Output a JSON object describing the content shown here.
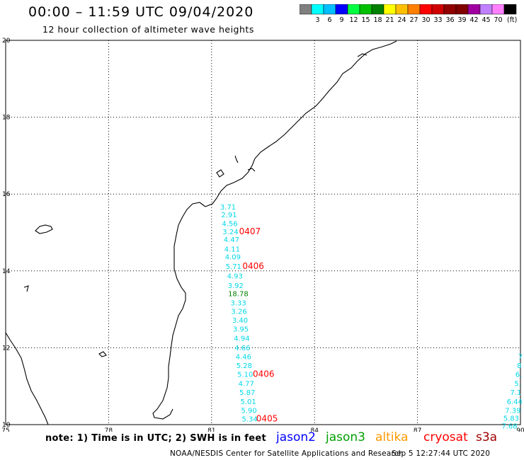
{
  "header": {
    "title": "00:00 – 11:59 UTC 09/04/2020",
    "subtitle": "12 hour collection of altimeter wave heights"
  },
  "colorbar": {
    "colors": [
      "#808080",
      "#00ffff",
      "#00bfff",
      "#0000ff",
      "#00ff40",
      "#00c000",
      "#008000",
      "#ffff00",
      "#ffc000",
      "#ff8000",
      "#ff0000",
      "#d00000",
      "#900000",
      "#800000",
      "#a000a0",
      "#c080ff",
      "#ff80ff",
      "#000000"
    ],
    "labels": [
      "3",
      "6",
      "9",
      "12",
      "15",
      "18",
      "21",
      "24",
      "27",
      "30",
      "33",
      "36",
      "39",
      "42",
      "45",
      "70"
    ],
    "unit": "(ft)"
  },
  "map": {
    "lon_ticks": [
      "75",
      "78",
      "81",
      "84",
      "87",
      "90"
    ],
    "lat_ticks": [
      "10",
      "12",
      "14",
      "16",
      "18",
      "20"
    ],
    "lon_range": [
      75,
      90
    ],
    "lat_range": [
      10,
      20
    ],
    "grid": "dotted",
    "track_main": [
      {
        "text": "3.71",
        "lon": 81.25,
        "lat": 15.6
      },
      {
        "text": "2.91",
        "lon": 81.28,
        "lat": 15.4
      },
      {
        "text": "4.56",
        "lon": 81.3,
        "lat": 15.17
      },
      {
        "text": "3.24",
        "lon": 81.32,
        "lat": 14.95
      },
      {
        "text": "4.47",
        "lon": 81.35,
        "lat": 14.75
      },
      {
        "text": "4.11",
        "lon": 81.37,
        "lat": 14.5
      },
      {
        "text": "4.09",
        "lon": 81.39,
        "lat": 14.3
      },
      {
        "text": "5.71",
        "lon": 81.41,
        "lat": 14.05
      },
      {
        "text": "4.93",
        "lon": 81.45,
        "lat": 13.8
      },
      {
        "text": "3.92",
        "lon": 81.47,
        "lat": 13.55
      },
      {
        "text": "18.78",
        "lon": 81.48,
        "lat": 13.34,
        "color": "#008000"
      },
      {
        "text": "3.33",
        "lon": 81.55,
        "lat": 13.1
      },
      {
        "text": "3.26",
        "lon": 81.57,
        "lat": 12.88
      },
      {
        "text": "3.40",
        "lon": 81.6,
        "lat": 12.65
      },
      {
        "text": "3.95",
        "lon": 81.62,
        "lat": 12.42
      },
      {
        "text": "4.94",
        "lon": 81.65,
        "lat": 12.18
      },
      {
        "text": "4.66",
        "lon": 81.67,
        "lat": 11.93
      },
      {
        "text": "4.46",
        "lon": 81.7,
        "lat": 11.7
      },
      {
        "text": "5.28",
        "lon": 81.72,
        "lat": 11.47
      },
      {
        "text": "5.10",
        "lon": 81.75,
        "lat": 11.24
      },
      {
        "text": "4.77",
        "lon": 81.78,
        "lat": 11.0
      },
      {
        "text": "5.87",
        "lon": 81.81,
        "lat": 10.77
      },
      {
        "text": "5.01",
        "lon": 81.84,
        "lat": 10.53
      },
      {
        "text": "5.90",
        "lon": 81.86,
        "lat": 10.3
      },
      {
        "text": "5.34",
        "lon": 81.88,
        "lat": 10.08
      }
    ],
    "track_right": [
      {
        "text": "7",
        "lon": 89.93,
        "lat": 11.7
      },
      {
        "text": "8",
        "lon": 89.9,
        "lat": 11.47
      },
      {
        "text": "6.",
        "lon": 89.85,
        "lat": 11.24
      },
      {
        "text": "5.",
        "lon": 89.82,
        "lat": 11.0
      },
      {
        "text": "7.1",
        "lon": 89.7,
        "lat": 10.77
      },
      {
        "text": "6.44",
        "lon": 89.6,
        "lat": 10.53
      },
      {
        "text": "7.39",
        "lon": 89.55,
        "lat": 10.3
      },
      {
        "text": "5.83",
        "lon": 89.5,
        "lat": 10.1
      },
      {
        "text": "7.68",
        "lon": 89.45,
        "lat": 9.9
      }
    ],
    "time_labels": [
      {
        "text": "0407",
        "lon": 81.8,
        "lat": 14.95
      },
      {
        "text": "0406",
        "lon": 81.9,
        "lat": 14.05
      },
      {
        "text": "0406",
        "lon": 82.2,
        "lat": 11.24
      },
      {
        "text": "0405",
        "lon": 82.3,
        "lat": 10.08
      }
    ],
    "colors": {
      "track": "#00d8e8",
      "track_white": "#000000",
      "time": "#ff0000",
      "coast": "#000000"
    }
  },
  "footer": {
    "note": "note: 1) Time is in UTC; 2) SWH is in feet",
    "legend": [
      {
        "name": "jason2",
        "color": "#0000ff"
      },
      {
        "name": "jason3",
        "color": "#00a000"
      },
      {
        "name": "altika",
        "color": "#ff9900"
      },
      {
        "name": "cryosat",
        "color": "#ff0000"
      },
      {
        "name": "s3a",
        "color": "#a00000"
      }
    ],
    "credit": "NOAA/NESDIS Center for Satellite Applications and Research",
    "timestamp": "Sep  5 12:27:44 UTC 2020"
  }
}
